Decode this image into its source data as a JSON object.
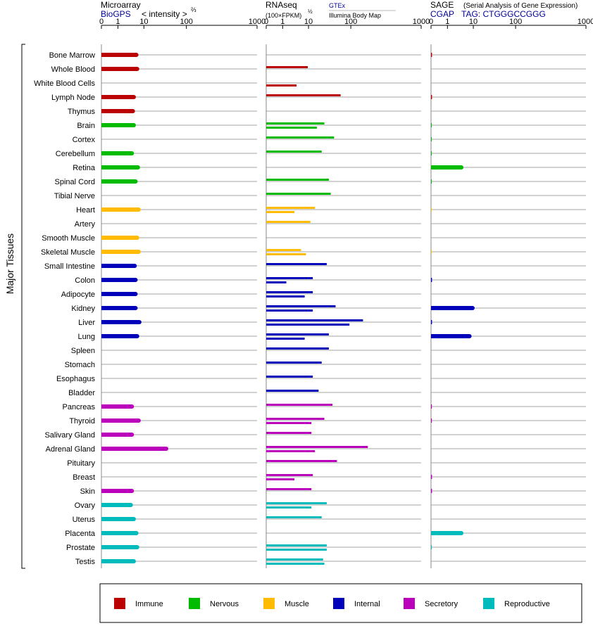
{
  "headers": {
    "microarray": {
      "title": "Microarray",
      "subtitle": "BioGPS",
      "unit_text": "< intensity >",
      "unit_exp": "⅔"
    },
    "rnaseq": {
      "title": "RNAseq",
      "unit_text": "(100×FPKM)",
      "unit_exp": "½",
      "source_a": "GTEx",
      "source_b": "Illumina Body Map"
    },
    "sage": {
      "title": "SAGE",
      "title_note": "(Serial Analysis of Gene Expression)",
      "tag_prefix": "CGAP",
      "tag_label": "TAG: CTGGGCCGGG"
    }
  },
  "side_label": "Major Tissues",
  "colors": {
    "Immune": "#bb0000",
    "Nervous": "#00bb00",
    "Muscle": "#ffbb00",
    "Internal": "#0000bb",
    "Secretory": "#bb00bb",
    "Reproductive": "#00bbbb"
  },
  "legend": {
    "items": [
      {
        "label": "Immune",
        "color": "#bb0000"
      },
      {
        "label": "Nervous",
        "color": "#00bb00"
      },
      {
        "label": "Muscle",
        "color": "#ffbb00"
      },
      {
        "label": "Internal",
        "color": "#0000bb"
      },
      {
        "label": "Secretory",
        "color": "#bb00bb"
      },
      {
        "label": "Reproductive",
        "color": "#00bbbb"
      }
    ]
  },
  "chart_data": [
    {
      "type": "bar",
      "panel": "microarray",
      "title": "Microarray",
      "xscale": "log",
      "xlim": [
        0,
        1000
      ],
      "ticks": [
        "0",
        "1",
        "10",
        "100",
        "1000"
      ],
      "categories": [
        "Bone Marrow",
        "Whole Blood",
        "White Blood Cells",
        "Lymph Node",
        "Thymus",
        "Brain",
        "Cortex",
        "Cerebellum",
        "Retina",
        "Spinal Cord",
        "Tibial Nerve",
        "Heart",
        "Artery",
        "Smooth Muscle",
        "Skeletal Muscle",
        "Small Intestine",
        "Colon",
        "Adipocyte",
        "Kidney",
        "Liver",
        "Lung",
        "Spleen",
        "Stomach",
        "Esophagus",
        "Bladder",
        "Pancreas",
        "Thyroid",
        "Salivary Gland",
        "Adrenal Gland",
        "Pituitary",
        "Breast",
        "Skin",
        "Ovary",
        "Uterus",
        "Placenta",
        "Prostate",
        "Testis"
      ],
      "systems": [
        "Immune",
        "Immune",
        "Immune",
        "Immune",
        "Immune",
        "Nervous",
        "Nervous",
        "Nervous",
        "Nervous",
        "Nervous",
        "Nervous",
        "Muscle",
        "Muscle",
        "Muscle",
        "Muscle",
        "Internal",
        "Internal",
        "Internal",
        "Internal",
        "Internal",
        "Internal",
        "Internal",
        "Internal",
        "Internal",
        "Internal",
        "Secretory",
        "Secretory",
        "Secretory",
        "Secretory",
        "Secretory",
        "Secretory",
        "Secretory",
        "Reproductive",
        "Reproductive",
        "Reproductive",
        "Reproductive",
        "Reproductive"
      ],
      "values": [
        2.5,
        2.6,
        null,
        2.2,
        2.1,
        2.2,
        null,
        2.0,
        2.7,
        2.4,
        null,
        2.8,
        null,
        2.6,
        2.8,
        2.3,
        2.4,
        2.4,
        2.4,
        2.9,
        2.6,
        null,
        null,
        null,
        null,
        2.0,
        2.8,
        2.0,
        11.0,
        null,
        null,
        2.0,
        1.9,
        2.2,
        2.5,
        2.6,
        2.2
      ]
    },
    {
      "type": "bar",
      "panel": "rnaseq",
      "title": "RNAseq",
      "xscale": "log",
      "xlim": [
        0,
        1000
      ],
      "ticks": [
        "0",
        "1",
        "10",
        "100",
        "1000"
      ],
      "series": [
        {
          "name": "GTEx",
          "values": [
            null,
            3.5,
            null,
            18,
            null,
            8,
            13,
            7,
            null,
            10,
            11,
            5,
            4,
            null,
            2.5,
            9,
            4.5,
            4.5,
            14,
            55,
            10,
            10,
            7,
            4.5,
            6,
            12,
            8,
            4.2,
            70,
            15,
            4.5,
            4.2,
            9,
            7,
            null,
            9,
            7.5
          ]
        },
        {
          "name": "Illumina Body Map",
          "values": [
            null,
            null,
            2,
            null,
            null,
            5.5,
            null,
            null,
            null,
            null,
            null,
            1.8,
            null,
            null,
            3.2,
            null,
            1.2,
            3,
            4.5,
            28,
            3,
            null,
            null,
            null,
            null,
            null,
            4.2,
            null,
            5,
            null,
            1.8,
            null,
            4.2,
            null,
            null,
            9,
            8
          ]
        }
      ]
    },
    {
      "type": "bar",
      "panel": "sage",
      "title": "SAGE",
      "xscale": "log",
      "xlim": [
        0,
        1000
      ],
      "ticks": [
        "0",
        "1",
        "10",
        "100",
        "1000"
      ],
      "values": [
        0.06,
        null,
        null,
        0.06,
        null,
        0.04,
        0.03,
        0.03,
        2.0,
        0.03,
        null,
        0.02,
        null,
        null,
        0.02,
        null,
        0.06,
        null,
        3.5,
        0.06,
        3.0,
        null,
        null,
        null,
        null,
        0.05,
        0.05,
        null,
        null,
        null,
        0.06,
        0.06,
        null,
        null,
        2.0,
        0.03,
        null
      ]
    }
  ]
}
